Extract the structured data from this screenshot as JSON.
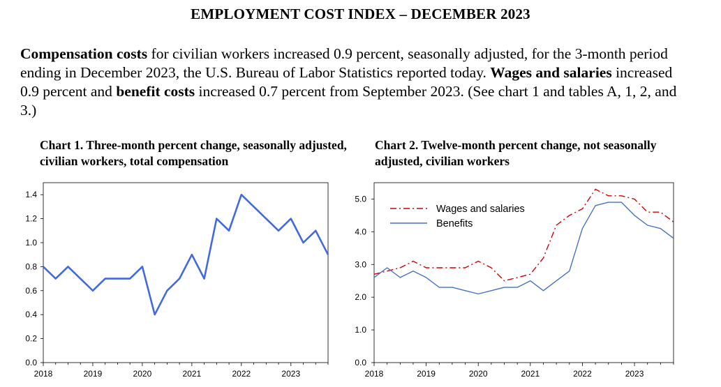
{
  "header": {
    "title": "EMPLOYMENT COST INDEX – DECEMBER 2023"
  },
  "summary": {
    "s1_bold": "Compensation costs",
    "s1_text": " for civilian workers increased 0.9 percent, seasonally adjusted, for the 3-month period ending in December 2023, the U.S. Bureau of Labor Statistics reported today. ",
    "s2_bold": "Wages and salaries",
    "s2_text": " increased 0.9 percent and ",
    "s3_bold": "benefit costs",
    "s3_text": " increased 0.7 percent from September 2023. (See chart 1 and tables A, 1, 2, and 3.)"
  },
  "chart_data": [
    {
      "type": "line",
      "title": "Chart 1. Three-month percent change, seasonally adjusted, civilian workers, total compensation",
      "xlabel": "",
      "ylabel": "",
      "x_tick_labels": [
        "2018",
        "2019",
        "2020",
        "2021",
        "2022",
        "2023"
      ],
      "y_tick_labels": [
        "0.0",
        "0.2",
        "0.4",
        "0.6",
        "0.8",
        "1.0",
        "1.2",
        "1.4"
      ],
      "ylim": [
        0,
        1.5
      ],
      "x": [
        "2018 Q1",
        "2018 Q2",
        "2018 Q3",
        "2018 Q4",
        "2019 Q1",
        "2019 Q2",
        "2019 Q3",
        "2019 Q4",
        "2020 Q1",
        "2020 Q2",
        "2020 Q3",
        "2020 Q4",
        "2021 Q1",
        "2021 Q2",
        "2021 Q3",
        "2021 Q4",
        "2022 Q1",
        "2022 Q2",
        "2022 Q3",
        "2022 Q4",
        "2023 Q1",
        "2023 Q2",
        "2023 Q3",
        "2023 Q4"
      ],
      "series": [
        {
          "name": "",
          "color": "#4169e1",
          "values": [
            0.8,
            0.7,
            0.8,
            0.7,
            0.6,
            0.7,
            0.7,
            0.7,
            0.8,
            0.4,
            0.6,
            0.7,
            0.9,
            0.7,
            1.2,
            1.1,
            1.4,
            1.3,
            1.2,
            1.1,
            1.2,
            1.0,
            1.1,
            0.9
          ]
        }
      ],
      "grid": false,
      "legend": "none"
    },
    {
      "type": "line",
      "title": "Chart 2. Twelve-month percent change, not seasonally adjusted, civilian workers",
      "xlabel": "",
      "ylabel": "",
      "x_tick_labels": [
        "2018",
        "2019",
        "2020",
        "2021",
        "2022",
        "2023"
      ],
      "y_tick_labels": [
        "0.0",
        "1.0",
        "2.0",
        "3.0",
        "4.0",
        "5.0"
      ],
      "ylim": [
        0,
        5.5
      ],
      "x": [
        "2018 Q1",
        "2018 Q2",
        "2018 Q3",
        "2018 Q4",
        "2019 Q1",
        "2019 Q2",
        "2019 Q3",
        "2019 Q4",
        "2020 Q1",
        "2020 Q2",
        "2020 Q3",
        "2020 Q4",
        "2021 Q1",
        "2021 Q2",
        "2021 Q3",
        "2021 Q4",
        "2022 Q1",
        "2022 Q2",
        "2022 Q3",
        "2022 Q4",
        "2023 Q1",
        "2023 Q2",
        "2023 Q3",
        "2023 Q4"
      ],
      "series": [
        {
          "name": "Wages and salaries",
          "color": "#d40000",
          "dash": "dash-dot",
          "values": [
            2.7,
            2.8,
            2.9,
            3.1,
            2.9,
            2.9,
            2.9,
            2.9,
            3.1,
            2.9,
            2.5,
            2.6,
            2.7,
            3.2,
            4.2,
            4.5,
            4.7,
            5.3,
            5.1,
            5.1,
            5.0,
            4.6,
            4.6,
            4.3
          ]
        },
        {
          "name": "Benefits",
          "color": "#4472c4",
          "dash": "solid",
          "values": [
            2.6,
            2.9,
            2.6,
            2.8,
            2.6,
            2.3,
            2.3,
            2.2,
            2.1,
            2.2,
            2.3,
            2.3,
            2.5,
            2.2,
            2.5,
            2.8,
            4.1,
            4.8,
            4.9,
            4.9,
            4.5,
            4.2,
            4.1,
            3.8
          ]
        }
      ],
      "grid": false,
      "legend": "top-left"
    }
  ]
}
